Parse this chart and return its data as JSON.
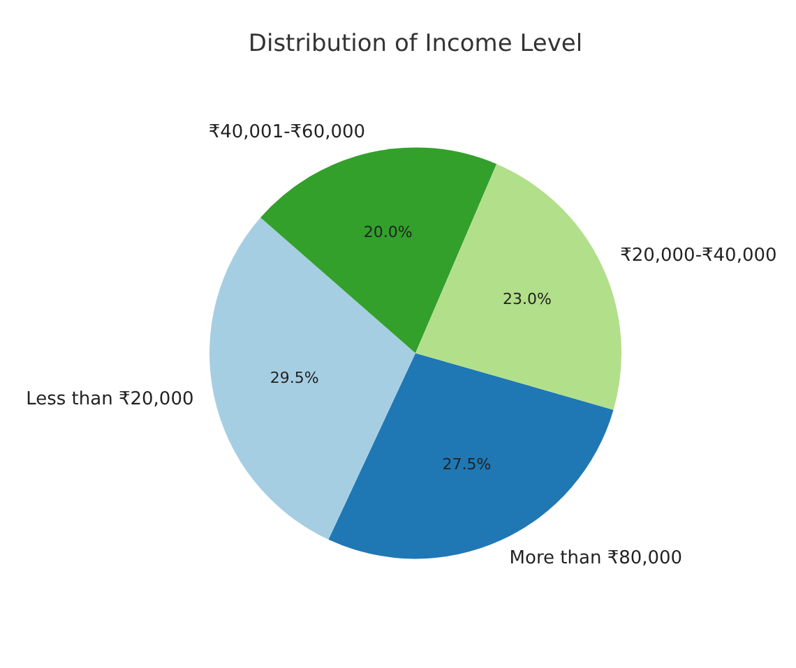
{
  "chart_data": {
    "type": "pie",
    "title": "Distribution of Income Level",
    "categories": [
      "More than ₹80,000",
      "Less than ₹20,000",
      "₹40,001-₹60,000",
      "₹20,000-₹40,000"
    ],
    "values": [
      27.5,
      29.5,
      20.0,
      23.0
    ],
    "value_labels": [
      "27.5%",
      "29.5%",
      "20.0%",
      "23.0%"
    ],
    "colors": [
      "#1f78b4",
      "#a6cee3",
      "#33a02c",
      "#b2df8a"
    ],
    "legend": false
  }
}
